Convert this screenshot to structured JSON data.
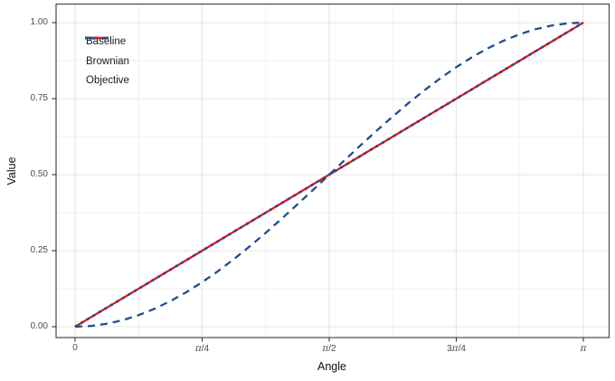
{
  "figure": {
    "background": "#ffffff",
    "panel_border_color": "#4a4a4a",
    "grid_major_color": "#e4e4e4",
    "grid_minor_color": "#f2f2f2",
    "tick_color": "#333333",
    "tick_label_color": "#4d4d4d",
    "axis_title_color": "#111111"
  },
  "x_axis": {
    "title": "Angle",
    "ticks": [
      {
        "pos": 0,
        "label": "0"
      },
      {
        "pos": 0.25,
        "label": "π/4"
      },
      {
        "pos": 0.5,
        "label": "π/2"
      },
      {
        "pos": 0.75,
        "label": "3π/4"
      },
      {
        "pos": 1,
        "label": "π"
      }
    ],
    "minor": [
      0.125,
      0.375,
      0.625,
      0.875
    ]
  },
  "y_axis": {
    "title": "Value",
    "ticks": [
      {
        "pos": 0,
        "label": "0.00"
      },
      {
        "pos": 0.25,
        "label": "0.25"
      },
      {
        "pos": 0.5,
        "label": "0.50"
      },
      {
        "pos": 0.75,
        "label": "0.75"
      },
      {
        "pos": 1,
        "label": "1.00"
      }
    ],
    "minor": [
      0.125,
      0.375,
      0.625,
      0.875
    ]
  },
  "legend": {
    "items": [
      {
        "label": "Baseline"
      },
      {
        "label": "Brownian"
      },
      {
        "label": "Objective"
      }
    ]
  },
  "chart_data": {
    "type": "line",
    "title": "",
    "xlabel": "Angle",
    "ylabel": "Value",
    "x_unit": "fraction_of_pi",
    "xlim_pi": [
      0,
      1
    ],
    "ylim": [
      0,
      1
    ],
    "grid": true,
    "legend_position": "inside-top-left",
    "x": [
      0,
      0.0313,
      0.0625,
      0.0938,
      0.125,
      0.1563,
      0.1875,
      0.2188,
      0.25,
      0.2813,
      0.3125,
      0.3438,
      0.375,
      0.4063,
      0.4375,
      0.4688,
      0.5,
      0.5313,
      0.5625,
      0.5938,
      0.625,
      0.6563,
      0.6875,
      0.7188,
      0.75,
      0.7813,
      0.8125,
      0.8438,
      0.875,
      0.9063,
      0.9375,
      0.9688,
      1
    ],
    "series": [
      {
        "name": "Baseline",
        "color": "#1d4f91",
        "line_style": "dotted",
        "width": 2.7,
        "y": [
          0,
          0.0313,
          0.0625,
          0.0938,
          0.125,
          0.1563,
          0.1875,
          0.2188,
          0.25,
          0.2813,
          0.3125,
          0.3438,
          0.375,
          0.4063,
          0.4375,
          0.4688,
          0.5,
          0.5313,
          0.5625,
          0.5938,
          0.625,
          0.6563,
          0.6875,
          0.7188,
          0.75,
          0.7813,
          0.8125,
          0.8438,
          0.875,
          0.9063,
          0.9375,
          0.9688,
          1
        ]
      },
      {
        "name": "Brownian",
        "color": "#ed1111",
        "line_style": "solid",
        "width": 2.2,
        "y": [
          0,
          0.0313,
          0.0625,
          0.0938,
          0.125,
          0.1563,
          0.1875,
          0.2188,
          0.25,
          0.2813,
          0.3125,
          0.3438,
          0.375,
          0.4063,
          0.4375,
          0.4688,
          0.5,
          0.5313,
          0.5625,
          0.5938,
          0.625,
          0.6563,
          0.6875,
          0.7188,
          0.75,
          0.7813,
          0.8125,
          0.8438,
          0.875,
          0.9063,
          0.9375,
          0.9688,
          1
        ]
      },
      {
        "name": "Objective",
        "color": "#1d4f91",
        "line_style": "dashed",
        "width": 2.3,
        "y": [
          0,
          0.0024,
          0.0096,
          0.0215,
          0.0381,
          0.059,
          0.0843,
          0.1135,
          0.1464,
          0.1828,
          0.2222,
          0.2643,
          0.3087,
          0.3549,
          0.4024,
          0.451,
          0.5,
          0.549,
          0.5976,
          0.6451,
          0.6913,
          0.7357,
          0.7778,
          0.8172,
          0.8536,
          0.8865,
          0.9157,
          0.941,
          0.9619,
          0.9785,
          0.9904,
          0.9976,
          1
        ]
      }
    ]
  }
}
